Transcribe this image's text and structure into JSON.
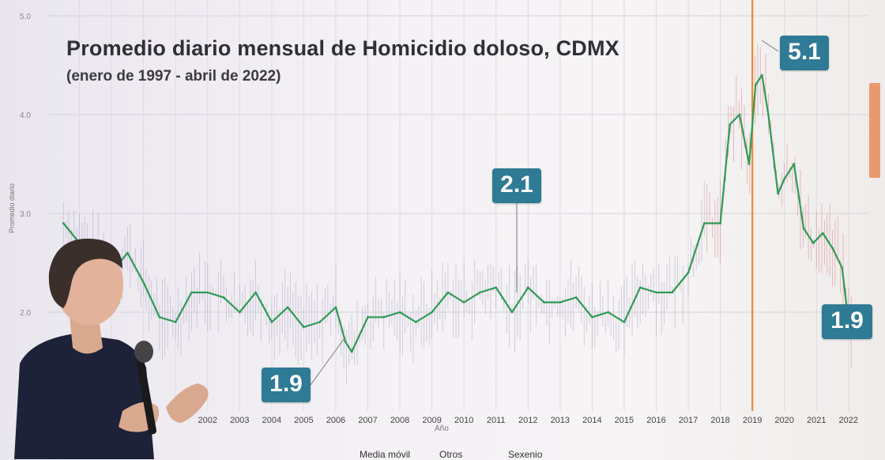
{
  "chart_data": {
    "type": "line",
    "title": "Promedio diario mensual de Homicidio doloso, CDMX",
    "subtitle": "(enero de 1997 - abril de 2022)",
    "xlabel": "Año",
    "ylabel": "Promedio diario",
    "x_ticks": [
      "2002",
      "2003",
      "2004",
      "2005",
      "2006",
      "2007",
      "2008",
      "2009",
      "2010",
      "2011",
      "2012",
      "2013",
      "2014",
      "2015",
      "2016",
      "2017",
      "2018",
      "2019",
      "2020",
      "2021",
      "2022"
    ],
    "y_ticks": [
      "2.0",
      "3.0",
      "4.0",
      "5.0"
    ],
    "xlim": [
      1997,
      2022.4
    ],
    "ylim": [
      1.0,
      5.0
    ],
    "grid": true,
    "series": [
      {
        "name": "Media móvil",
        "color": "#2e9a55",
        "x": [
          1997.5,
          1998.0,
          1998.5,
          1999.0,
          1999.5,
          2000.0,
          2000.5,
          2001.0,
          2001.5,
          2002.0,
          2002.5,
          2003.0,
          2003.5,
          2004.0,
          2004.5,
          2005.0,
          2005.5,
          2006.0,
          2006.3,
          2006.5,
          2007.0,
          2007.5,
          2008.0,
          2008.5,
          2009.0,
          2009.5,
          2010.0,
          2010.5,
          2011.0,
          2011.5,
          2012.0,
          2012.5,
          2013.0,
          2013.5,
          2014.0,
          2014.5,
          2015.0,
          2015.5,
          2016.0,
          2016.5,
          2017.0,
          2017.5,
          2018.0,
          2018.3,
          2018.6,
          2018.9,
          2019.1,
          2019.3,
          2019.5,
          2019.8,
          2020.0,
          2020.3,
          2020.6,
          2020.9,
          2021.2,
          2021.5,
          2021.8,
          2022.0,
          2022.2
        ],
        "values": [
          2.9,
          2.7,
          2.6,
          2.4,
          2.6,
          2.3,
          1.95,
          1.9,
          2.2,
          2.2,
          2.15,
          2.0,
          2.2,
          1.9,
          2.05,
          1.85,
          1.9,
          2.05,
          1.7,
          1.6,
          1.95,
          1.95,
          2.0,
          1.9,
          2.0,
          2.2,
          2.1,
          2.2,
          2.25,
          2.0,
          2.25,
          2.1,
          2.1,
          2.15,
          1.95,
          2.0,
          1.9,
          2.25,
          2.2,
          2.2,
          2.4,
          2.9,
          2.9,
          3.9,
          4.0,
          3.5,
          4.3,
          4.4,
          4.0,
          3.2,
          3.35,
          3.5,
          2.85,
          2.7,
          2.8,
          2.65,
          2.45,
          1.9,
          1.8
        ]
      }
    ],
    "reference_line": {
      "name": "Sexenio",
      "x": 2019.0,
      "color": "#f08a2c"
    },
    "annotations": [
      {
        "text": "5.1",
        "x": 2019.3,
        "y": 5.1
      },
      {
        "text": "2.1",
        "x": 2012.1,
        "y": 2.1
      },
      {
        "text": "1.9",
        "x": 2006.3,
        "y": 1.9
      },
      {
        "text": "1.9",
        "x": 2022.2,
        "y": 1.9
      }
    ],
    "legend": {
      "placement": "bottom",
      "items": [
        "Media móvil",
        "Otros",
        "Sexenio"
      ]
    }
  }
}
